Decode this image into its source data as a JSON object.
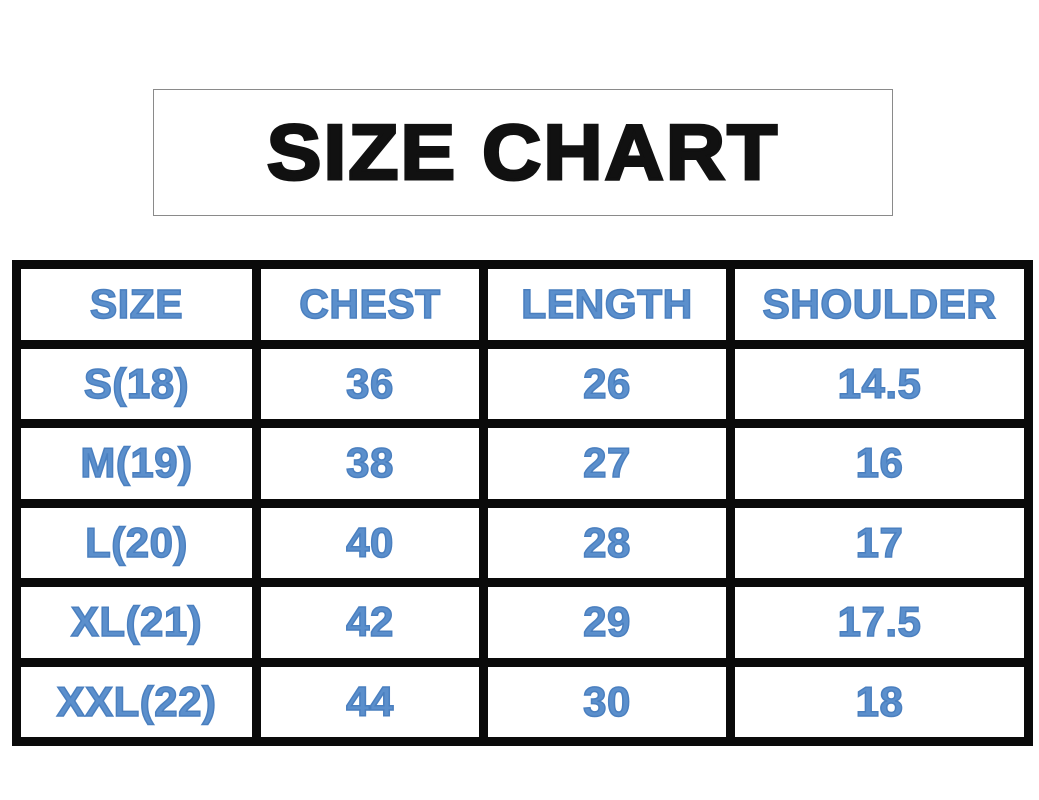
{
  "title": "SIZE CHART",
  "text_color": "#5b8fcc",
  "table": {
    "headers": [
      "SIZE",
      "CHEST",
      "LENGTH",
      "SHOULDER"
    ],
    "rows": [
      [
        "S(18)",
        "36",
        "26",
        "14.5"
      ],
      [
        "M(19)",
        "38",
        "27",
        "16"
      ],
      [
        "L(20)",
        "40",
        "28",
        "17"
      ],
      [
        "XL(21)",
        "42",
        "29",
        "17.5"
      ],
      [
        "XXL(22)",
        "44",
        "30",
        "18"
      ]
    ]
  }
}
